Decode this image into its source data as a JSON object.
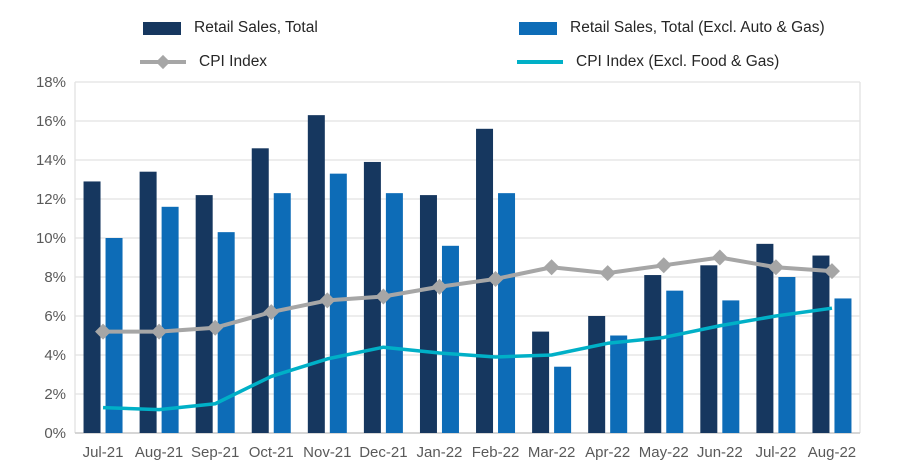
{
  "chart_data": {
    "type": "combo-bar-line",
    "title": "",
    "categories": [
      "Jul-21",
      "Aug-21",
      "Sep-21",
      "Oct-21",
      "Nov-21",
      "Dec-21",
      "Jan-22",
      "Feb-22",
      "Mar-22",
      "Apr-22",
      "May-22",
      "Jun-22",
      "Jul-22",
      "Aug-22"
    ],
    "series": [
      {
        "name": "Retail Sales, Total",
        "type": "bar",
        "color": "#16375F",
        "values": [
          12.9,
          13.4,
          12.2,
          14.6,
          16.3,
          13.9,
          12.2,
          15.6,
          5.2,
          6.0,
          8.1,
          8.6,
          9.7,
          9.1
        ]
      },
      {
        "name": "Retail Sales, Total (Excl. Auto & Gas)",
        "type": "bar",
        "color": "#0D6CB7",
        "values": [
          10.0,
          11.6,
          10.3,
          12.3,
          13.3,
          12.3,
          9.6,
          12.3,
          3.4,
          5.0,
          7.3,
          6.8,
          8.0,
          6.9
        ]
      },
      {
        "name": "CPI Index",
        "type": "line",
        "marker": "diamond",
        "color": "#A6A6A6",
        "values": [
          5.2,
          5.2,
          5.4,
          6.2,
          6.8,
          7.0,
          7.5,
          7.9,
          8.5,
          8.2,
          8.6,
          9.0,
          8.5,
          8.3
        ]
      },
      {
        "name": "CPI Index (Excl. Food & Gas)",
        "type": "line",
        "marker": "none",
        "color": "#00B0C7",
        "values": [
          1.3,
          1.2,
          1.5,
          2.9,
          3.8,
          4.4,
          4.1,
          3.9,
          4.0,
          4.6,
          4.9,
          5.5,
          6.0,
          6.4
        ]
      }
    ],
    "xlabel": "",
    "ylabel": "",
    "ylim": [
      0,
      18
    ],
    "ytick_step": 2,
    "ytick_suffix": "%",
    "grid": true,
    "legend_position": "top"
  },
  "style": {
    "grid_color": "#E2E2E2",
    "axis_line_color": "#C9C9C9",
    "tick_label_color": "#595959",
    "legend_text_color": "#262626"
  }
}
